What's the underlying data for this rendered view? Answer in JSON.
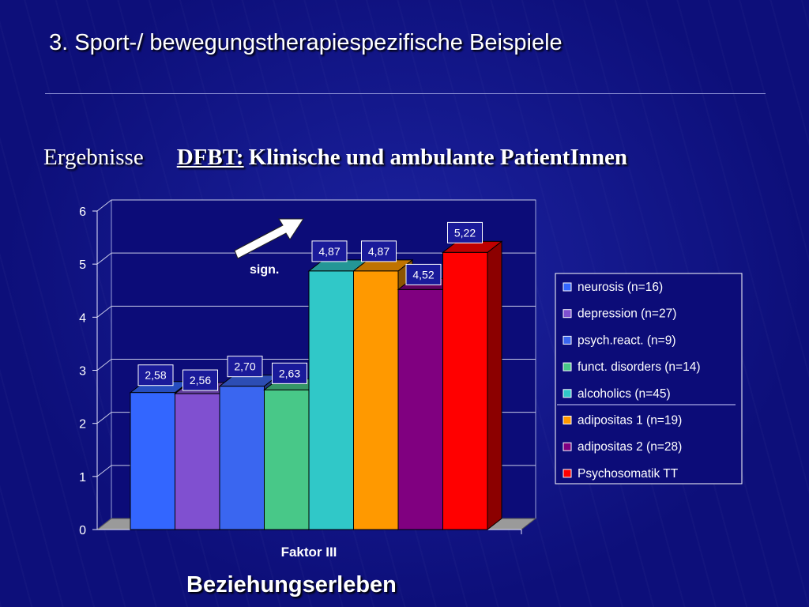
{
  "slide": {
    "title": "3. Sport-/ bewegungstherapiespezifische Beispiele",
    "section_label": "Ergebnisse",
    "subtitle_prefix": "DFBT:",
    "subtitle_text": "Klinische und ambulante PatientInnen",
    "bottom_caption": "Beziehungserleben"
  },
  "chart_data": {
    "type": "bar",
    "categories": [
      "Faktor III"
    ],
    "ylim": [
      0,
      6
    ],
    "yticks": [
      "0",
      "1",
      "2",
      "3",
      "4",
      "5",
      "6"
    ],
    "grid": true,
    "legend_position": "right",
    "annotation": "sign.",
    "series": [
      {
        "name": "neurosis (n=16)",
        "values": [
          2.58
        ],
        "label": "2,58",
        "color": "#3366ff"
      },
      {
        "name": "depression (n=27)",
        "values": [
          2.56
        ],
        "label": "2,56",
        "color": "#8050d0"
      },
      {
        "name": "psych.react. (n=9)",
        "values": [
          2.7
        ],
        "label": "2,70",
        "color": "#3a66f0"
      },
      {
        "name": "funct. disorders (n=14)",
        "values": [
          2.63
        ],
        "label": "2,63",
        "color": "#48c888"
      },
      {
        "name": "alcoholics (n=45)",
        "values": [
          4.87
        ],
        "label": "4,87",
        "color": "#30c8c8"
      },
      {
        "name": "adipositas 1 (n=19)",
        "values": [
          4.87
        ],
        "label": "4,87",
        "color": "#ff9900"
      },
      {
        "name": "adipositas 2 (n=28)",
        "values": [
          4.52
        ],
        "label": "4,52",
        "color": "#800080"
      },
      {
        "name": "Psychosomatik TT",
        "values": [
          5.22
        ],
        "label": "5,22",
        "color": "#ff0000"
      }
    ]
  }
}
